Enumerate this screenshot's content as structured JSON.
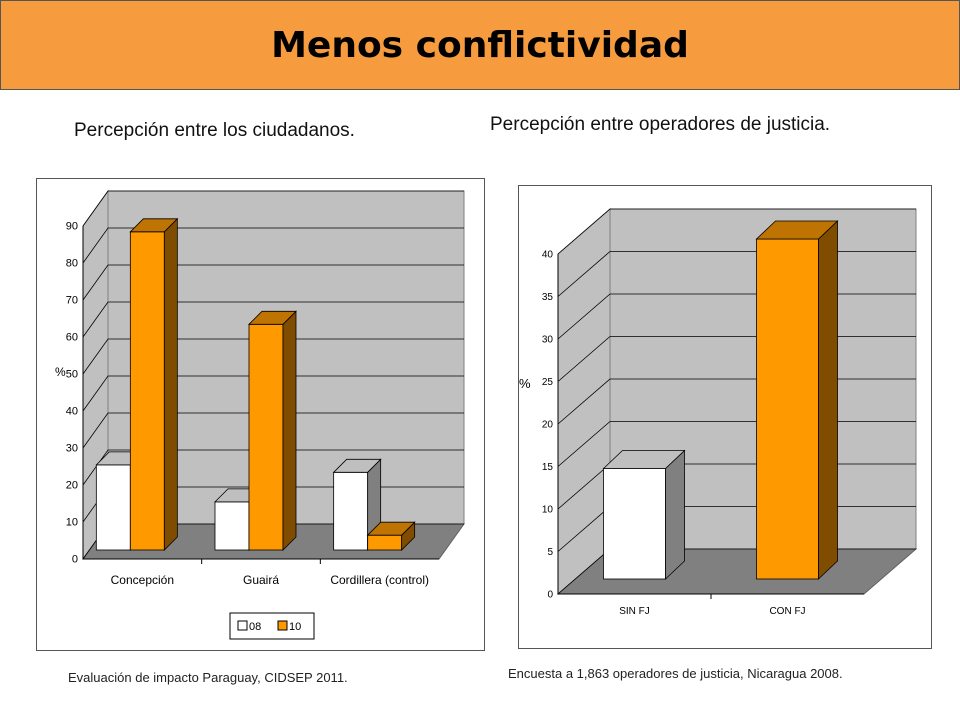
{
  "header": {
    "title": "Menos conflictividad"
  },
  "chart_data": [
    {
      "type": "bar",
      "title": "Percepción entre los ciudadanos.",
      "ylabel": "%",
      "ylim": [
        0,
        90
      ],
      "yticks": [
        "0",
        "10",
        "20",
        "30",
        "40",
        "50",
        "60",
        "70",
        "80",
        "90"
      ],
      "categories": [
        "Concepción",
        "Guairá",
        "Cordillera (control)"
      ],
      "series": [
        {
          "name": "08",
          "color": "#ffffff",
          "values": [
            23,
            13,
            21
          ]
        },
        {
          "name": "10",
          "color": "#ff9900",
          "values": [
            86,
            61,
            4
          ]
        }
      ],
      "legend": "bottom",
      "source": "Evaluación de impacto Paraguay, CIDSEP 2011."
    },
    {
      "type": "bar",
      "title": "Percepción entre operadores de justicia.",
      "ylabel": "%",
      "ylim": [
        0,
        40
      ],
      "yticks": [
        "0",
        "5",
        "10",
        "15",
        "20",
        "25",
        "30",
        "35",
        "40"
      ],
      "categories": [
        "SIN FJ",
        "CON FJ"
      ],
      "values": [
        13,
        40
      ],
      "colors": [
        "#ffffff",
        "#ff9900"
      ],
      "source": "Encuesta a 1,863 operadores de justicia, Nicaragua 2008."
    }
  ]
}
